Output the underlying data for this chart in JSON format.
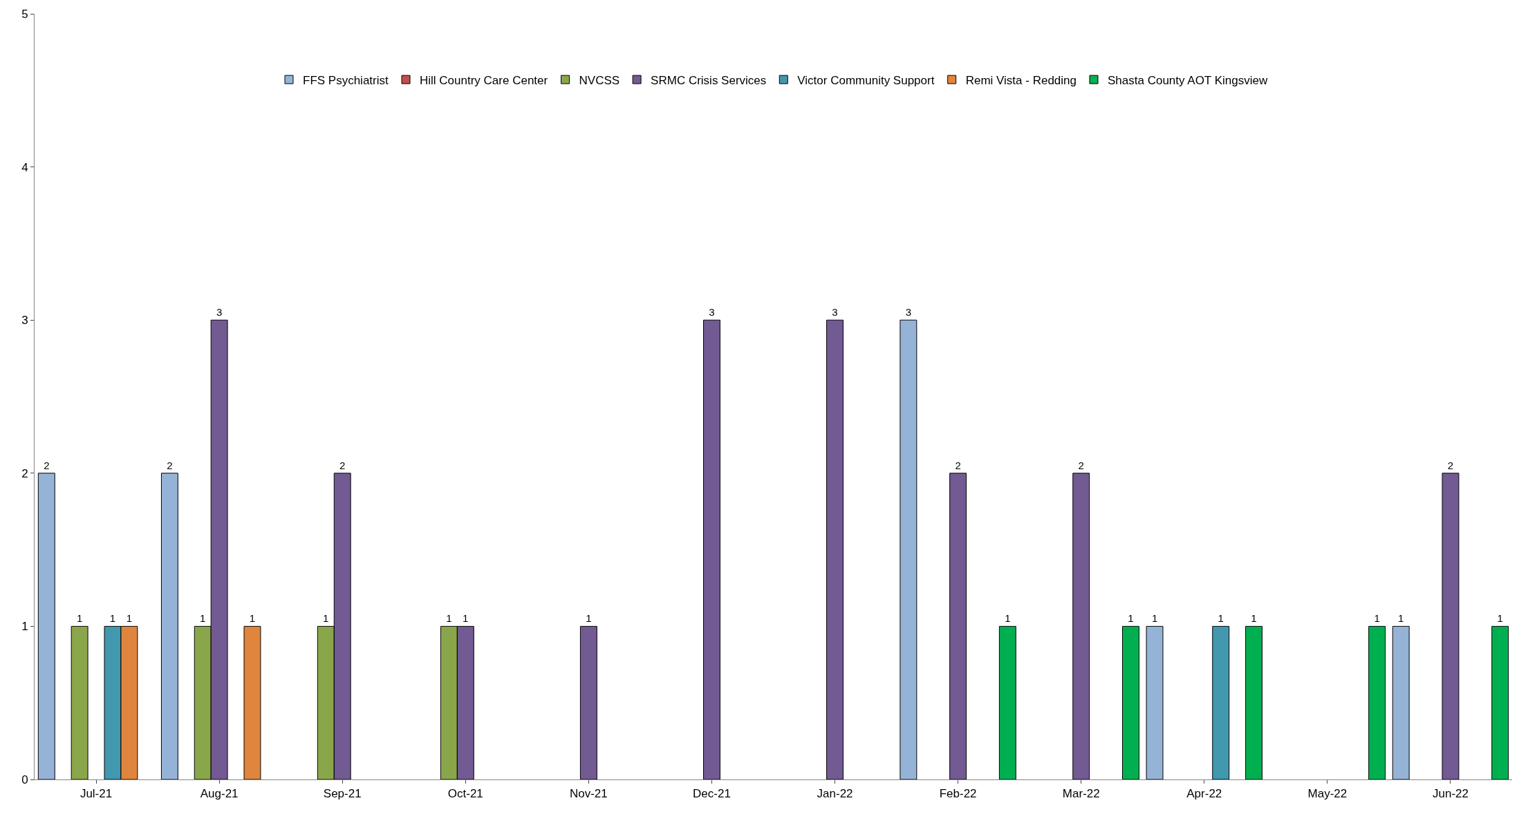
{
  "chart_data": {
    "type": "bar",
    "categories": [
      "Jul-21",
      "Aug-21",
      "Sep-21",
      "Oct-21",
      "Nov-21",
      "Dec-21",
      "Jan-22",
      "Feb-22",
      "Mar-22",
      "Apr-22",
      "May-22",
      "Jun-22"
    ],
    "series": [
      {
        "name": "FFS Psychiatrist",
        "color": "#95b3d7",
        "values": [
          2,
          2,
          null,
          null,
          null,
          null,
          null,
          3,
          null,
          1,
          null,
          1
        ]
      },
      {
        "name": "Hill Country Care Center",
        "color": "#c0504d",
        "values": [
          null,
          null,
          null,
          null,
          null,
          null,
          null,
          null,
          null,
          null,
          null,
          null
        ]
      },
      {
        "name": "NVCSS",
        "color": "#8aa64a",
        "values": [
          1,
          1,
          1,
          1,
          null,
          null,
          null,
          null,
          null,
          null,
          null,
          null
        ]
      },
      {
        "name": "SRMC Crisis Services",
        "color": "#725a93",
        "values": [
          null,
          3,
          2,
          1,
          1,
          3,
          3,
          2,
          2,
          null,
          null,
          2
        ]
      },
      {
        "name": "Victor Community Support",
        "color": "#4198af",
        "values": [
          1,
          null,
          null,
          null,
          null,
          null,
          null,
          null,
          null,
          1,
          null,
          null
        ]
      },
      {
        "name": "Remi Vista - Redding",
        "color": "#e0853d",
        "values": [
          1,
          1,
          null,
          null,
          null,
          null,
          null,
          null,
          null,
          null,
          null,
          null
        ]
      },
      {
        "name": "Shasta County AOT Kingsview",
        "color": "#00b050",
        "values": [
          null,
          null,
          null,
          null,
          null,
          null,
          null,
          1,
          1,
          1,
          1,
          1
        ]
      }
    ],
    "ylim": [
      0,
      5
    ],
    "yticks": [
      0,
      1,
      2,
      3,
      4,
      5
    ],
    "legend": "top",
    "data_labels": true
  }
}
